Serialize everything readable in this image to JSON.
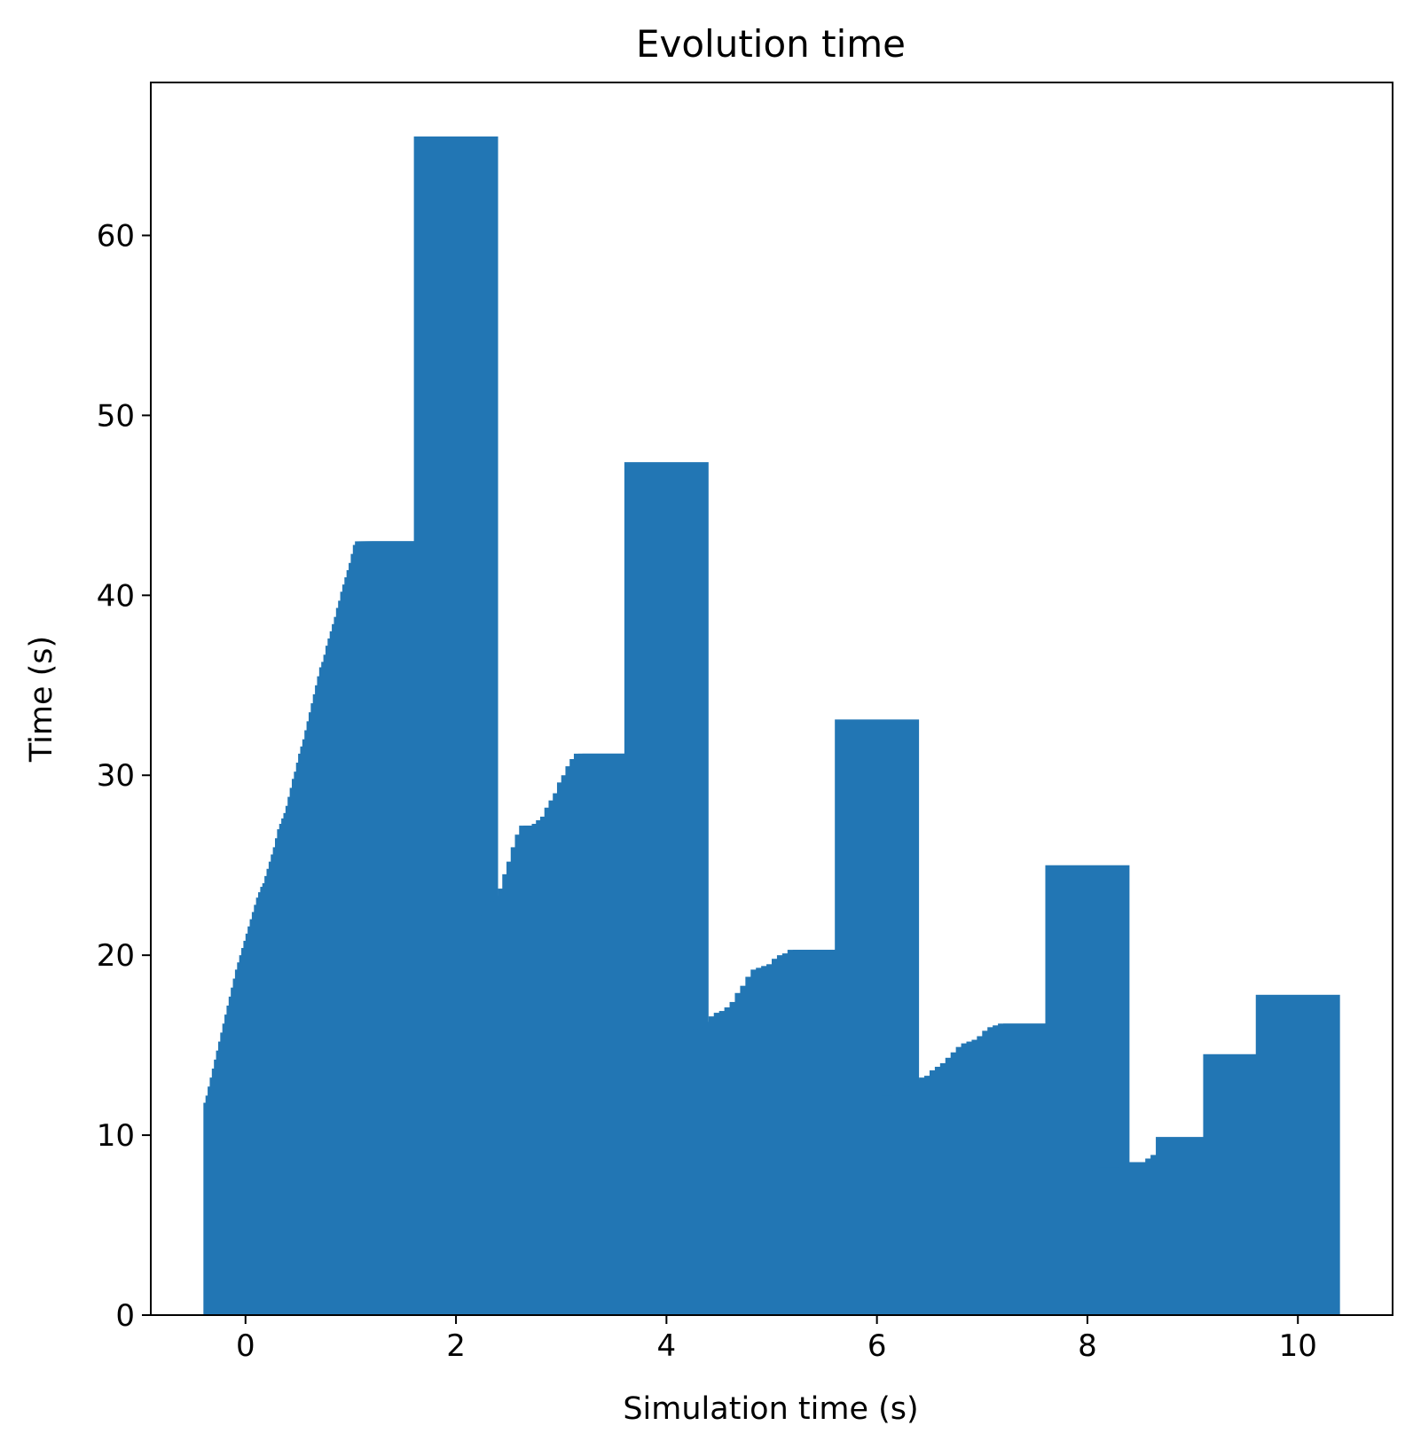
{
  "chart_data": {
    "type": "bar",
    "title": "Evolution time",
    "xlabel": "Simulation time (s)",
    "ylabel": "Time (s)",
    "xlim": [
      -0.9,
      10.9
    ],
    "ylim": [
      0,
      68.5
    ],
    "xticks": [
      0,
      2,
      4,
      6,
      8,
      10
    ],
    "yticks": [
      0,
      10,
      20,
      30,
      40,
      50,
      60
    ],
    "grid": false,
    "bar_width": 0.8,
    "color": "#2276b4",
    "note_text": "",
    "bars": [
      {
        "x": 0,
        "value": 11.8
      },
      {
        "x": 0.02,
        "value": 12.2
      },
      {
        "x": 0.04,
        "value": 12.7
      },
      {
        "x": 0.06,
        "value": 13.2
      },
      {
        "x": 0.08,
        "value": 13.7
      },
      {
        "x": 0.1,
        "value": 14.2
      },
      {
        "x": 0.12,
        "value": 14.7
      },
      {
        "x": 0.14,
        "value": 15.2
      },
      {
        "x": 0.16,
        "value": 15.7
      },
      {
        "x": 0.18,
        "value": 16.2
      },
      {
        "x": 0.2,
        "value": 16.7
      },
      {
        "x": 0.22,
        "value": 17.2
      },
      {
        "x": 0.24,
        "value": 17.7
      },
      {
        "x": 0.26,
        "value": 18.2
      },
      {
        "x": 0.28,
        "value": 18.7
      },
      {
        "x": 0.3,
        "value": 19.2
      },
      {
        "x": 0.32,
        "value": 19.6
      },
      {
        "x": 0.34,
        "value": 20.0
      },
      {
        "x": 0.36,
        "value": 20.4
      },
      {
        "x": 0.38,
        "value": 20.8
      },
      {
        "x": 0.4,
        "value": 21.2
      },
      {
        "x": 0.42,
        "value": 21.6
      },
      {
        "x": 0.44,
        "value": 22.0
      },
      {
        "x": 0.46,
        "value": 22.4
      },
      {
        "x": 0.48,
        "value": 22.8
      },
      {
        "x": 0.5,
        "value": 23.2
      },
      {
        "x": 0.52,
        "value": 23.5
      },
      {
        "x": 0.54,
        "value": 23.8
      },
      {
        "x": 0.56,
        "value": 24.0
      },
      {
        "x": 0.58,
        "value": 24.4
      },
      {
        "x": 0.6,
        "value": 24.8
      },
      {
        "x": 0.62,
        "value": 25.2
      },
      {
        "x": 0.64,
        "value": 25.6
      },
      {
        "x": 0.66,
        "value": 26.0
      },
      {
        "x": 0.68,
        "value": 26.5
      },
      {
        "x": 0.7,
        "value": 27.0
      },
      {
        "x": 0.72,
        "value": 27.3
      },
      {
        "x": 0.74,
        "value": 27.6
      },
      {
        "x": 0.76,
        "value": 27.9
      },
      {
        "x": 0.78,
        "value": 28.3
      },
      {
        "x": 0.8,
        "value": 28.8
      },
      {
        "x": 0.82,
        "value": 29.3
      },
      {
        "x": 0.84,
        "value": 29.8
      },
      {
        "x": 0.86,
        "value": 30.2
      },
      {
        "x": 0.88,
        "value": 30.7
      },
      {
        "x": 0.9,
        "value": 31.2
      },
      {
        "x": 0.92,
        "value": 31.6
      },
      {
        "x": 0.94,
        "value": 32.0
      },
      {
        "x": 0.96,
        "value": 32.5
      },
      {
        "x": 0.98,
        "value": 33.0
      },
      {
        "x": 1.0,
        "value": 33.5
      },
      {
        "x": 1.02,
        "value": 34.0
      },
      {
        "x": 1.04,
        "value": 34.5
      },
      {
        "x": 1.06,
        "value": 35.0
      },
      {
        "x": 1.08,
        "value": 35.5
      },
      {
        "x": 1.1,
        "value": 36.0
      },
      {
        "x": 1.12,
        "value": 36.3
      },
      {
        "x": 1.14,
        "value": 36.7
      },
      {
        "x": 1.16,
        "value": 37.2
      },
      {
        "x": 1.18,
        "value": 37.6
      },
      {
        "x": 1.2,
        "value": 38.0
      },
      {
        "x": 1.22,
        "value": 38.4
      },
      {
        "x": 1.24,
        "value": 38.8
      },
      {
        "x": 1.26,
        "value": 39.3
      },
      {
        "x": 1.28,
        "value": 39.7
      },
      {
        "x": 1.3,
        "value": 40.2
      },
      {
        "x": 1.32,
        "value": 40.6
      },
      {
        "x": 1.34,
        "value": 41.0
      },
      {
        "x": 1.36,
        "value": 41.4
      },
      {
        "x": 1.38,
        "value": 41.8
      },
      {
        "x": 1.4,
        "value": 42.3
      },
      {
        "x": 1.42,
        "value": 42.8
      },
      {
        "x": 1.44,
        "value": 43.0
      },
      {
        "x": 1.46,
        "value": 43.0
      },
      {
        "x": 1.48,
        "value": 43.0
      },
      {
        "x": 1.5,
        "value": 43.0
      },
      {
        "x": 1.52,
        "value": 43.0
      },
      {
        "x": 1.54,
        "value": 43.0
      },
      {
        "x": 1.56,
        "value": 43.0
      },
      {
        "x": 1.58,
        "value": 43.0
      },
      {
        "x": 1.6,
        "value": 43.0
      },
      {
        "x": 2.0,
        "value": 65.5
      },
      {
        "x": 2.4,
        "value": 20.0
      },
      {
        "x": 2.44,
        "value": 20.7
      },
      {
        "x": 2.48,
        "value": 21.0
      },
      {
        "x": 2.52,
        "value": 21.4
      },
      {
        "x": 2.56,
        "value": 21.8
      },
      {
        "x": 2.6,
        "value": 22.2
      },
      {
        "x": 2.64,
        "value": 22.6
      },
      {
        "x": 2.68,
        "value": 22.8
      },
      {
        "x": 2.72,
        "value": 23.0
      },
      {
        "x": 2.76,
        "value": 23.3
      },
      {
        "x": 2.8,
        "value": 23.7
      },
      {
        "x": 2.84,
        "value": 24.5
      },
      {
        "x": 2.88,
        "value": 25.2
      },
      {
        "x": 2.92,
        "value": 26.0
      },
      {
        "x": 2.96,
        "value": 26.7
      },
      {
        "x": 3.0,
        "value": 27.2
      },
      {
        "x": 3.04,
        "value": 27.2
      },
      {
        "x": 3.08,
        "value": 27.2
      },
      {
        "x": 3.12,
        "value": 27.3
      },
      {
        "x": 3.16,
        "value": 27.5
      },
      {
        "x": 3.2,
        "value": 27.7
      },
      {
        "x": 3.24,
        "value": 28.2
      },
      {
        "x": 3.28,
        "value": 28.6
      },
      {
        "x": 3.32,
        "value": 29.0
      },
      {
        "x": 3.36,
        "value": 29.6
      },
      {
        "x": 3.4,
        "value": 30.0
      },
      {
        "x": 3.44,
        "value": 30.5
      },
      {
        "x": 3.48,
        "value": 30.9
      },
      {
        "x": 3.52,
        "value": 31.2
      },
      {
        "x": 3.56,
        "value": 31.2
      },
      {
        "x": 3.6,
        "value": 31.2
      },
      {
        "x": 4.0,
        "value": 47.4
      },
      {
        "x": 4.4,
        "value": 14.9
      },
      {
        "x": 4.45,
        "value": 15.2
      },
      {
        "x": 4.5,
        "value": 15.3
      },
      {
        "x": 4.55,
        "value": 15.5
      },
      {
        "x": 4.6,
        "value": 15.8
      },
      {
        "x": 4.65,
        "value": 15.9
      },
      {
        "x": 4.7,
        "value": 16.0
      },
      {
        "x": 4.75,
        "value": 16.3
      },
      {
        "x": 4.8,
        "value": 16.6
      },
      {
        "x": 4.85,
        "value": 16.8
      },
      {
        "x": 4.9,
        "value": 16.9
      },
      {
        "x": 4.95,
        "value": 17.1
      },
      {
        "x": 5.0,
        "value": 17.4
      },
      {
        "x": 5.05,
        "value": 17.9
      },
      {
        "x": 5.1,
        "value": 18.3
      },
      {
        "x": 5.15,
        "value": 18.8
      },
      {
        "x": 5.2,
        "value": 19.2
      },
      {
        "x": 5.25,
        "value": 19.3
      },
      {
        "x": 5.3,
        "value": 19.4
      },
      {
        "x": 5.35,
        "value": 19.5
      },
      {
        "x": 5.4,
        "value": 19.8
      },
      {
        "x": 5.45,
        "value": 20.0
      },
      {
        "x": 5.5,
        "value": 20.1
      },
      {
        "x": 5.55,
        "value": 20.3
      },
      {
        "x": 5.6,
        "value": 20.3
      },
      {
        "x": 6.0,
        "value": 33.1
      },
      {
        "x": 6.4,
        "value": 12.2
      },
      {
        "x": 6.45,
        "value": 12.2
      },
      {
        "x": 6.5,
        "value": 12.2
      },
      {
        "x": 6.55,
        "value": 12.3
      },
      {
        "x": 6.6,
        "value": 12.5
      },
      {
        "x": 6.65,
        "value": 12.7
      },
      {
        "x": 6.7,
        "value": 13.0
      },
      {
        "x": 6.75,
        "value": 13.1
      },
      {
        "x": 6.8,
        "value": 13.2
      },
      {
        "x": 6.85,
        "value": 13.3
      },
      {
        "x": 6.9,
        "value": 13.6
      },
      {
        "x": 6.95,
        "value": 13.8
      },
      {
        "x": 7.0,
        "value": 14.0
      },
      {
        "x": 7.05,
        "value": 14.3
      },
      {
        "x": 7.1,
        "value": 14.6
      },
      {
        "x": 7.15,
        "value": 14.9
      },
      {
        "x": 7.2,
        "value": 15.1
      },
      {
        "x": 7.25,
        "value": 15.2
      },
      {
        "x": 7.3,
        "value": 15.3
      },
      {
        "x": 7.35,
        "value": 15.5
      },
      {
        "x": 7.4,
        "value": 15.8
      },
      {
        "x": 7.45,
        "value": 16.0
      },
      {
        "x": 7.5,
        "value": 16.1
      },
      {
        "x": 7.55,
        "value": 16.2
      },
      {
        "x": 7.6,
        "value": 16.2
      },
      {
        "x": 8.0,
        "value": 25.0
      },
      {
        "x": 8.4,
        "value": 8.0
      },
      {
        "x": 8.45,
        "value": 8.2
      },
      {
        "x": 8.5,
        "value": 8.2
      },
      {
        "x": 8.55,
        "value": 8.2
      },
      {
        "x": 8.6,
        "value": 8.2
      },
      {
        "x": 8.65,
        "value": 8.2
      },
      {
        "x": 8.7,
        "value": 8.4
      },
      {
        "x": 8.75,
        "value": 8.5
      },
      {
        "x": 8.8,
        "value": 8.5
      },
      {
        "x": 8.85,
        "value": 8.5
      },
      {
        "x": 8.9,
        "value": 8.5
      },
      {
        "x": 8.95,
        "value": 8.7
      },
      {
        "x": 9.0,
        "value": 8.9
      },
      {
        "x": 9.05,
        "value": 9.9
      },
      {
        "x": 9.5,
        "value": 14.5
      },
      {
        "x": 10.0,
        "value": 17.8
      }
    ]
  }
}
